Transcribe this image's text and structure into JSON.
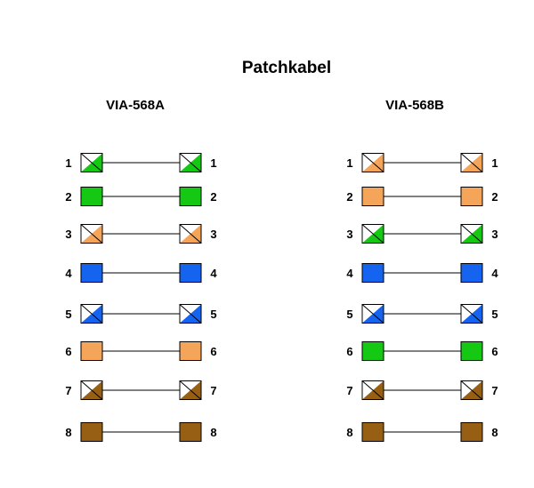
{
  "title": "Patchkabel",
  "colors": {
    "green": "#14c814",
    "orange": "#f5a55a",
    "blue": "#1464f0",
    "brown": "#965f14",
    "white": "#ffffff",
    "outline": "#000000",
    "wire": "#000000"
  },
  "standards": [
    {
      "name": "VIA-568A",
      "pins": [
        {
          "number": "1",
          "color": "green",
          "striped": true
        },
        {
          "number": "2",
          "color": "green",
          "striped": false
        },
        {
          "number": "3",
          "color": "orange",
          "striped": true
        },
        {
          "number": "4",
          "color": "blue",
          "striped": false
        },
        {
          "number": "5",
          "color": "blue",
          "striped": true
        },
        {
          "number": "6",
          "color": "orange",
          "striped": false
        },
        {
          "number": "7",
          "color": "brown",
          "striped": true
        },
        {
          "number": "8",
          "color": "brown",
          "striped": false
        }
      ]
    },
    {
      "name": "VIA-568B",
      "pins": [
        {
          "number": "1",
          "color": "orange",
          "striped": true
        },
        {
          "number": "2",
          "color": "orange",
          "striped": false
        },
        {
          "number": "3",
          "color": "green",
          "striped": true
        },
        {
          "number": "4",
          "color": "blue",
          "striped": false
        },
        {
          "number": "5",
          "color": "blue",
          "striped": true
        },
        {
          "number": "6",
          "color": "green",
          "striped": false
        },
        {
          "number": "7",
          "color": "brown",
          "striped": true
        },
        {
          "number": "8",
          "color": "brown",
          "striped": false
        }
      ]
    }
  ]
}
